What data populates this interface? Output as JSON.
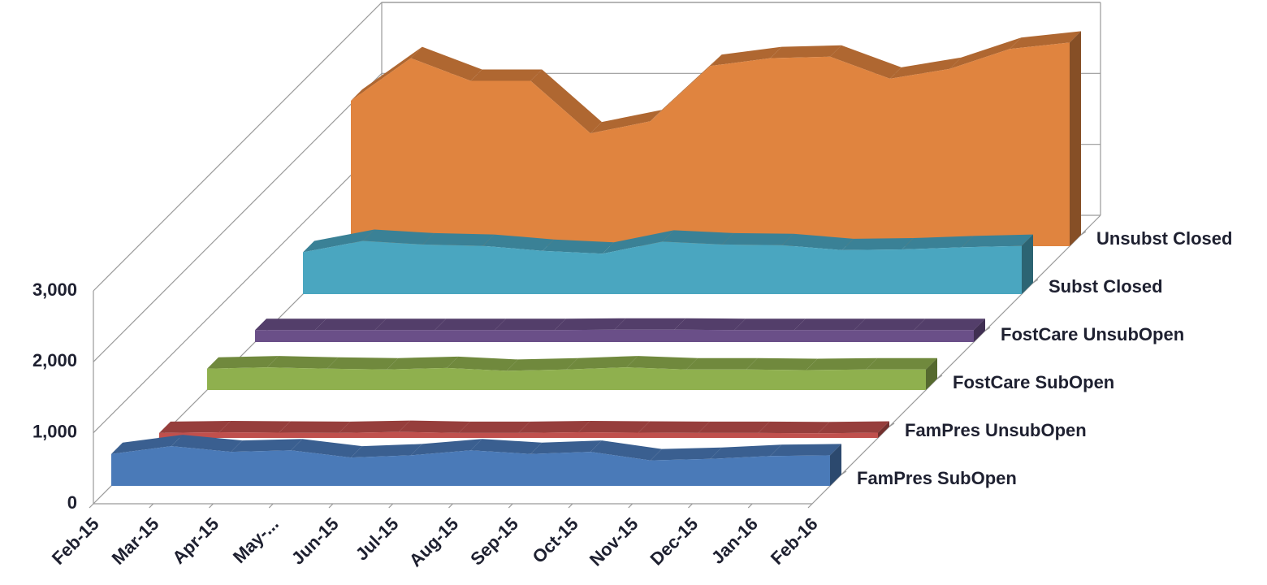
{
  "chart_data": {
    "type": "area",
    "categories": [
      "Feb-15",
      "Mar-15",
      "Apr-15",
      "May-...",
      "Jun-15",
      "Jul-15",
      "Aug-15",
      "Sep-15",
      "Oct-15",
      "Nov-15",
      "Dec-15",
      "Jan-16",
      "Feb-16"
    ],
    "series": [
      {
        "name": "FamPres SubOpen",
        "color": "#4a7ab8",
        "values": [
          450,
          560,
          480,
          500,
          400,
          430,
          500,
          450,
          480,
          360,
          380,
          420,
          430
        ]
      },
      {
        "name": "FamPres UnsubOpen",
        "color": "#c0504d",
        "values": [
          70,
          80,
          75,
          70,
          85,
          70,
          70,
          80,
          75,
          70,
          70,
          65,
          75
        ]
      },
      {
        "name": "FostCare SubOpen",
        "color": "#8fb04e",
        "values": [
          300,
          320,
          300,
          290,
          310,
          270,
          290,
          320,
          290,
          290,
          280,
          290,
          290
        ]
      },
      {
        "name": "FostCare UnsubOpen",
        "color": "#6a4f88",
        "values": [
          170,
          170,
          170,
          170,
          170,
          170,
          175,
          175,
          170,
          170,
          170,
          170,
          170
        ]
      },
      {
        "name": "Subst Closed",
        "color": "#4aa6c0",
        "values": [
          590,
          750,
          700,
          680,
          610,
          570,
          740,
          700,
          690,
          620,
          630,
          660,
          680
        ]
      },
      {
        "name": "Unsubst Closed",
        "color": "#e0843f",
        "values": [
          2050,
          2650,
          2330,
          2330,
          1590,
          1760,
          2540,
          2650,
          2670,
          2360,
          2500,
          2780,
          2870
        ]
      }
    ],
    "ylim": [
      0,
      3000
    ],
    "yticks": [
      0,
      {
        "value": 1000,
        "label": "1,000"
      },
      {
        "value": 2000,
        "label": "2,000"
      },
      {
        "value": 3000,
        "label": "3,000"
      }
    ],
    "grid": true
  }
}
